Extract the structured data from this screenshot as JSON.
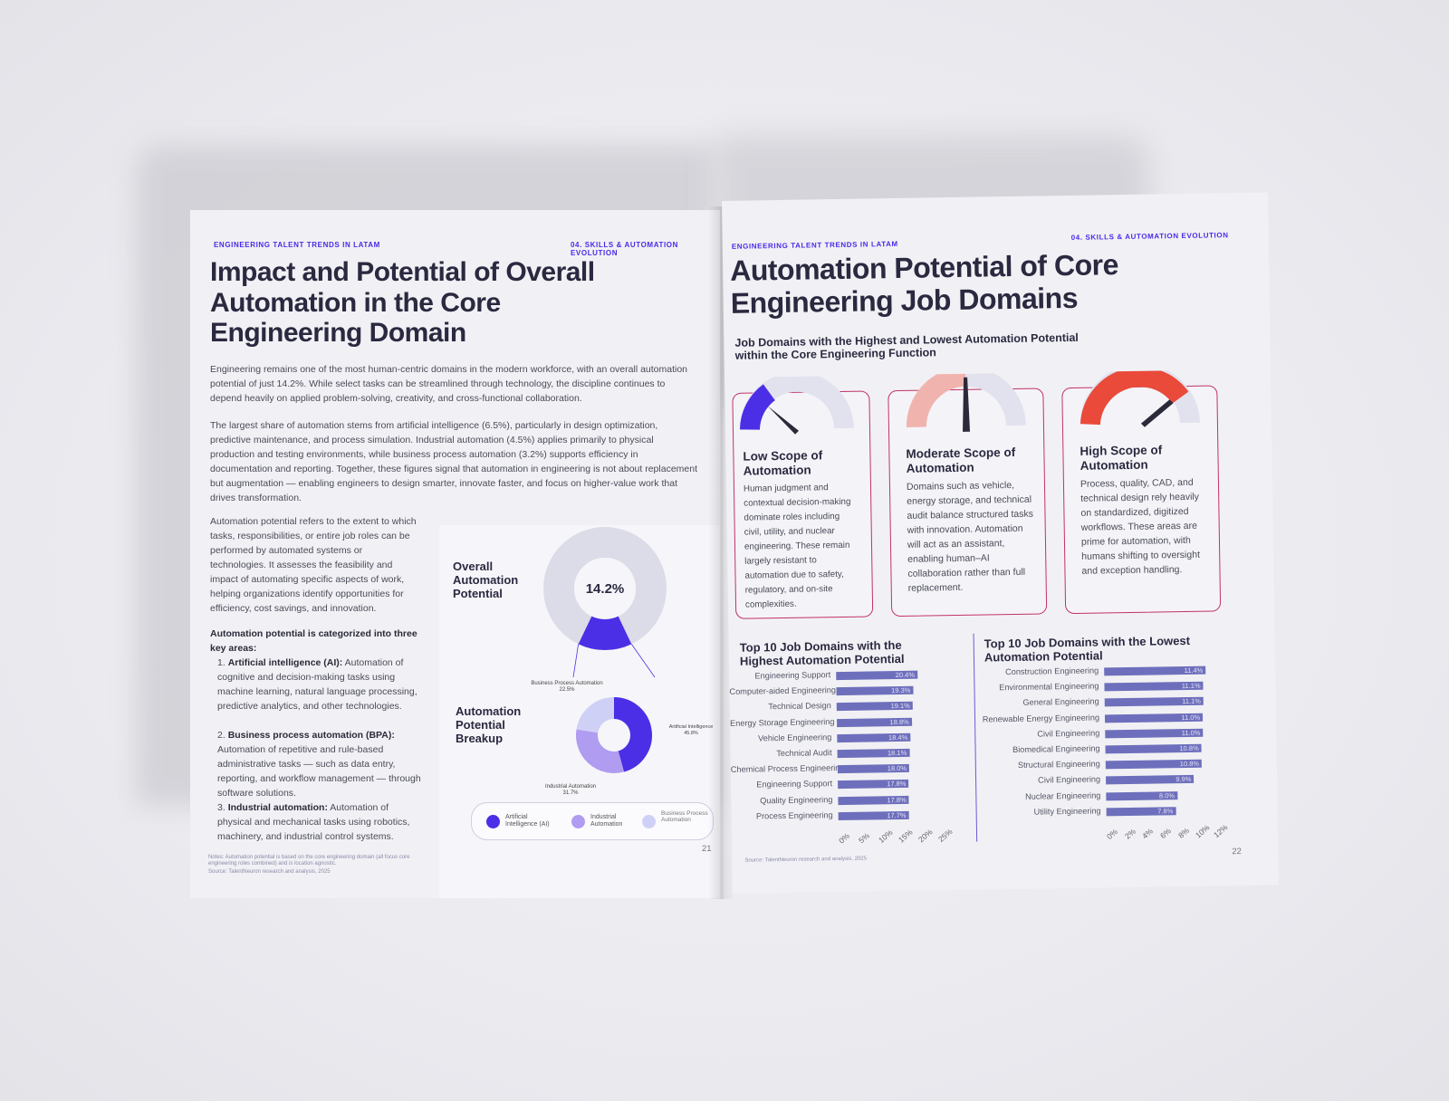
{
  "left_page": {
    "kicker_left": "ENGINEERING TALENT TRENDS IN LATAM",
    "kicker_right": "04. SKILLS & AUTOMATION EVOLUTION",
    "title_lines": [
      "Impact and Potential of Overall",
      "Automation in the Core",
      "Engineering Domain"
    ],
    "para1": "Engineering remains one of the most human-centric domains in the modern workforce, with an overall automation potential of just 14.2%. While select tasks can be streamlined through technology, the discipline continues to depend heavily on applied problem-solving, creativity, and cross-functional collaboration.",
    "para2": "The largest share of automation stems from artificial intelligence (6.5%), particularly in design optimization, predictive maintenance, and process simulation. Industrial automation (4.5%) applies primarily to physical production and testing environments, while business process automation (3.2%) supports efficiency in documentation and reporting. Together, these figures signal that automation in engineering is not about replacement but augmentation — enabling engineers to design smarter, innovate faster, and focus on higher-value work that drives transformation.",
    "para3": "Automation potential refers to the extent to which tasks, responsibilities, or entire job roles can be performed by automated systems or technologies. It assesses the feasibility and impact of automating specific aspects of work, helping organizations identify opportunities for efficiency, cost savings, and innovation.",
    "list_heading": "Automation potential is categorized into three key areas:",
    "list": [
      {
        "num": "1.",
        "bold": "Artificial intelligence (AI):",
        "text": " Automation of cognitive and decision-making tasks using machine learning, natural language processing, predictive analytics, and other technologies."
      },
      {
        "num": "2.",
        "bold": "Business process automation (BPA):",
        "text": " Automation of repetitive and rule-based administrative tasks — such as data entry, reporting, and workflow management — through software solutions."
      },
      {
        "num": "3.",
        "bold": "Industrial automation:",
        "text": " Automation of physical and mechanical tasks using robotics, machinery, and industrial control systems."
      }
    ],
    "note": "Notes: Automation potential is based on the core engineering domain (all focus core engineering roles combined) and is location agnostic.",
    "source": "Source: TalentNeuron research and analysis, 2025",
    "page_number": "21",
    "overall_label": "Overall Automation Potential",
    "overall_value": "14.2%",
    "bpa_callout": "Business Process Automation",
    "bpa_callout_value": "22.5%",
    "breakup_label": "Automation Potential Breakup",
    "ai_callout": "Artificial Intelligence",
    "ai_callout_value": "45.8%",
    "ind_callout": "Industrial Automation",
    "ind_callout_value": "31.7%",
    "legend": [
      "Artificial Intelligence (AI)",
      "Industrial Automation",
      "Business Process Automation"
    ],
    "colors": {
      "ai": "#4b2fe6",
      "industrial": "#b09cf0",
      "bpa": "#cfd0f5",
      "ring": "#dcdce8"
    }
  },
  "right_page": {
    "kicker_left": "ENGINEERING TALENT TRENDS IN LATAM",
    "kicker_right": "04. SKILLS & AUTOMATION EVOLUTION",
    "title_lines": [
      "Automation Potential of Core",
      "Engineering Job Domains"
    ],
    "subtitle_lines": [
      "Job Domains with the Highest and Lowest Automation Potential",
      "within the Core Engineering Function"
    ],
    "cards": [
      {
        "title": "Low Scope of Automation",
        "text": "Human judgment and contextual decision-making dominate roles including civil, utility, and nuclear engineering. These remain largely resistant to automation due to safety, regulatory, and on-site complexities.",
        "color": "#4b2fe6"
      },
      {
        "title": "Moderate Scope of Automation",
        "text": "Domains such as vehicle, energy storage, and technical audit balance structured tasks with innovation. Automation will act as an assistant, enabling human–AI collaboration rather than full replacement.",
        "color": "#f1b3ad"
      },
      {
        "title": "High Scope of Automation",
        "text": "Process, quality, CAD, and technical design rely heavily on standardized, digitized workflows. These areas are prime for automation, with humans shifting to oversight and exception handling.",
        "color": "#ea4a3a"
      }
    ],
    "source": "Source: TalentNeuron research and analysis, 2025",
    "page_number": "22"
  },
  "chart_data": [
    {
      "type": "pie",
      "title": "Overall Automation Potential",
      "categories": [
        "Automation Potential"
      ],
      "values": [
        14.2
      ],
      "center_label": "14.2%"
    },
    {
      "type": "pie",
      "title": "Automation Potential Breakup",
      "categories": [
        "Artificial Intelligence",
        "Industrial Automation",
        "Business Process Automation"
      ],
      "values": [
        45.8,
        31.7,
        22.5
      ]
    },
    {
      "type": "bar",
      "orientation": "horizontal",
      "title": "Top 10 Job Domains with the Highest Automation Potential",
      "categories": [
        "Engineering Support",
        "Computer-aided Engineering",
        "Technical Design",
        "Energy Storage Engineering",
        "Vehicle Engineering",
        "Technical Audit",
        "Chemical Process Engineering",
        "Engineering Support",
        "Quality Engineering",
        "Process Engineering"
      ],
      "values": [
        20.4,
        19.3,
        19.1,
        18.8,
        18.4,
        18.1,
        18.0,
        17.8,
        17.8,
        17.7
      ],
      "value_labels": [
        "20.4%",
        "19.3%",
        "19.1%",
        "18.8%",
        "18.4%",
        "18.1%",
        "18.0%",
        "17.8%",
        "17.8%",
        "17.7%"
      ],
      "xlim": [
        0,
        25
      ],
      "xticks": [
        "0%",
        "5%",
        "10%",
        "15%",
        "20%",
        "25%"
      ],
      "color": "#6e6fbc"
    },
    {
      "type": "bar",
      "orientation": "horizontal",
      "title": "Top 10 Job Domains with the Lowest Automation Potential",
      "categories": [
        "Construction Engineering",
        "Environmental Engineering",
        "General Engineering",
        "Renewable Energy Engineering",
        "Civil Engineering",
        "Biomedical Engineering",
        "Structural Engineering",
        "Civil Engineering",
        "Nuclear Engineering",
        "Utility Engineering"
      ],
      "values": [
        11.4,
        11.1,
        11.1,
        11.0,
        11.0,
        10.8,
        10.8,
        9.9,
        8.0,
        7.8
      ],
      "value_labels": [
        "11.4%",
        "11.1%",
        "11.1%",
        "11.0%",
        "11.0%",
        "10.8%",
        "10.8%",
        "9.9%",
        "8.0%",
        "7.8%"
      ],
      "xlim": [
        0,
        12
      ],
      "xticks": [
        "0%",
        "2%",
        "4%",
        "6%",
        "8%",
        "10%",
        "12%"
      ],
      "color": "#6e6fbc"
    }
  ]
}
